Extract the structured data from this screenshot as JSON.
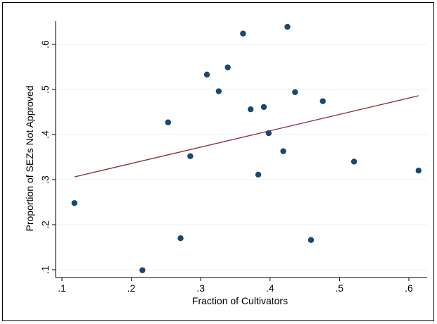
{
  "chart_data": {
    "type": "scatter",
    "title": "",
    "xlabel": "Fraction of Cultivators",
    "ylabel": "Proportion of SEZs Not Approved",
    "xlim": [
      0.1,
      0.6
    ],
    "ylim": [
      0.1,
      0.6
    ],
    "x_ticks": [
      0.1,
      0.2,
      0.3,
      0.4,
      0.5,
      0.6
    ],
    "y_ticks": [
      0.1,
      0.2,
      0.3,
      0.4,
      0.5,
      0.6
    ],
    "x_tick_labels": [
      ".1",
      ".2",
      ".3",
      ".4",
      ".5",
      ".6"
    ],
    "y_tick_labels": [
      ".1",
      ".2",
      ".3",
      ".4",
      ".5",
      ".6"
    ],
    "grid": "horizontal",
    "legend": "none",
    "series": [
      {
        "kind": "points",
        "color": "#1a476f",
        "points": [
          {
            "x": 0.118,
            "y": 0.248
          },
          {
            "x": 0.216,
            "y": 0.099
          },
          {
            "x": 0.253,
            "y": 0.427
          },
          {
            "x": 0.271,
            "y": 0.17
          },
          {
            "x": 0.285,
            "y": 0.352
          },
          {
            "x": 0.309,
            "y": 0.533
          },
          {
            "x": 0.326,
            "y": 0.496
          },
          {
            "x": 0.339,
            "y": 0.549
          },
          {
            "x": 0.361,
            "y": 0.624
          },
          {
            "x": 0.372,
            "y": 0.456
          },
          {
            "x": 0.383,
            "y": 0.311
          },
          {
            "x": 0.391,
            "y": 0.461
          },
          {
            "x": 0.398,
            "y": 0.403
          },
          {
            "x": 0.419,
            "y": 0.363
          },
          {
            "x": 0.425,
            "y": 0.639
          },
          {
            "x": 0.436,
            "y": 0.494
          },
          {
            "x": 0.459,
            "y": 0.166
          },
          {
            "x": 0.476,
            "y": 0.474
          },
          {
            "x": 0.521,
            "y": 0.34
          },
          {
            "x": 0.614,
            "y": 0.32
          }
        ]
      },
      {
        "kind": "fitted-line",
        "color": "#90353b",
        "points": [
          {
            "x": 0.118,
            "y": 0.306
          },
          {
            "x": 0.614,
            "y": 0.486
          }
        ]
      }
    ]
  }
}
